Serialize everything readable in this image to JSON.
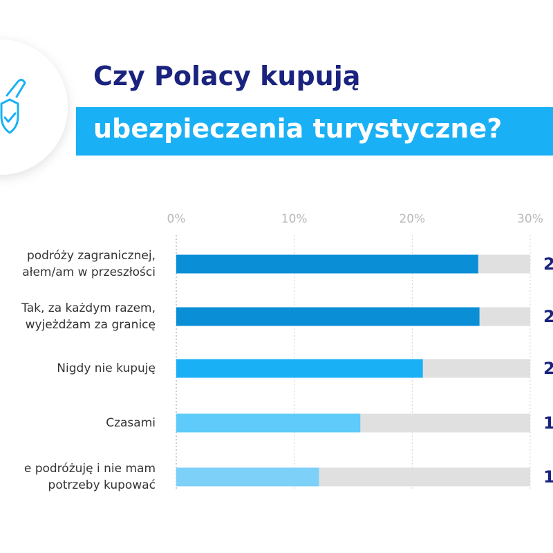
{
  "chart_data": {
    "type": "hbar",
    "title": "Czy Polacy kupują",
    "subtitle": "ubezpieczenia turystyczne?",
    "categories": [
      "podróży zagranicznej,\nałem/am w przeszłości",
      "Tak, za każdym razem,\nwyjeżdżam za granicę",
      "Nigdy nie kupuję",
      "Czasami",
      "e podróżuję i nie mam\npotrzeby kupować"
    ],
    "values": [
      25.6,
      25.7,
      20.9,
      15.6,
      12.1
    ],
    "side_labels": [
      "2",
      "2",
      "2",
      "1",
      "1"
    ],
    "colors": [
      "#0a8fd6",
      "#0a8fd6",
      "#1ab0f5",
      "#5ecbfb",
      "#7dd0f7"
    ],
    "track_color": "#e0e0e0",
    "xlim": [
      0,
      30
    ],
    "xticks": [
      {
        "value": 0,
        "label": "0%"
      },
      {
        "value": 10,
        "label": "10%"
      },
      {
        "value": 20,
        "label": "20%"
      },
      {
        "value": 30,
        "label": "30%"
      }
    ],
    "grid": true
  }
}
